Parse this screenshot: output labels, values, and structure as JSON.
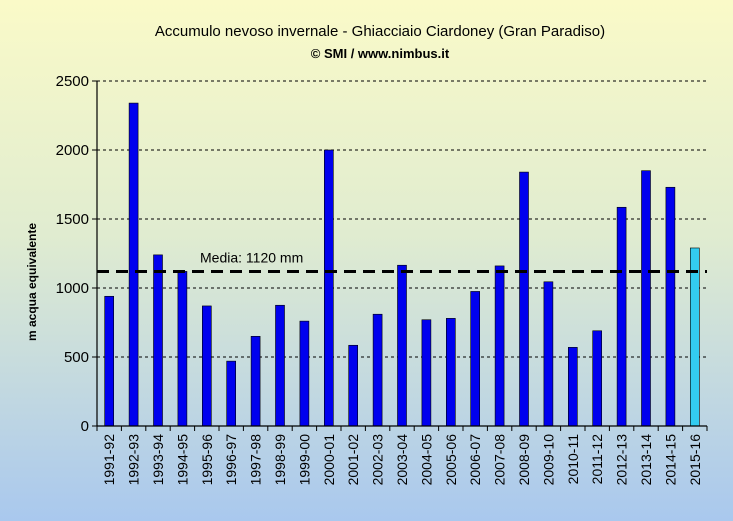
{
  "chart_data": {
    "type": "bar",
    "title": "Accumulo nevoso invernale - Ghiacciaio Ciardoney (Gran Paradiso)",
    "subtitle": "© SMI / www.nimbus.it",
    "xlabel": "",
    "ylabel": "m acqua equivalente",
    "ylim": [
      0,
      2500
    ],
    "yticks": [
      "0",
      "500",
      "1000",
      "1500",
      "2000",
      "2500"
    ],
    "grid": "horizontal dashed",
    "categories": [
      "1991-92",
      "1992-93",
      "1993-94",
      "1994-95",
      "1995-96",
      "1996-97",
      "1997-98",
      "1998-99",
      "1999-00",
      "2000-01",
      "2001-02",
      "2002-03",
      "2003-04",
      "2004-05",
      "2005-06",
      "2006-07",
      "2007-08",
      "2008-09",
      "2009-10",
      "2010-11",
      "2011-12",
      "2012-13",
      "2013-14",
      "2014-15",
      "2015-16"
    ],
    "values": [
      940,
      2340,
      1240,
      1120,
      870,
      470,
      650,
      875,
      760,
      2000,
      585,
      810,
      1165,
      770,
      780,
      975,
      1160,
      1840,
      1045,
      570,
      690,
      1585,
      1850,
      1730,
      1290
    ],
    "bar_color": "#0000ee",
    "highlight_color": "#33ccf0",
    "highlight_index": 24,
    "mean_value": 1120,
    "mean_label": "Media: 1120 mm"
  }
}
